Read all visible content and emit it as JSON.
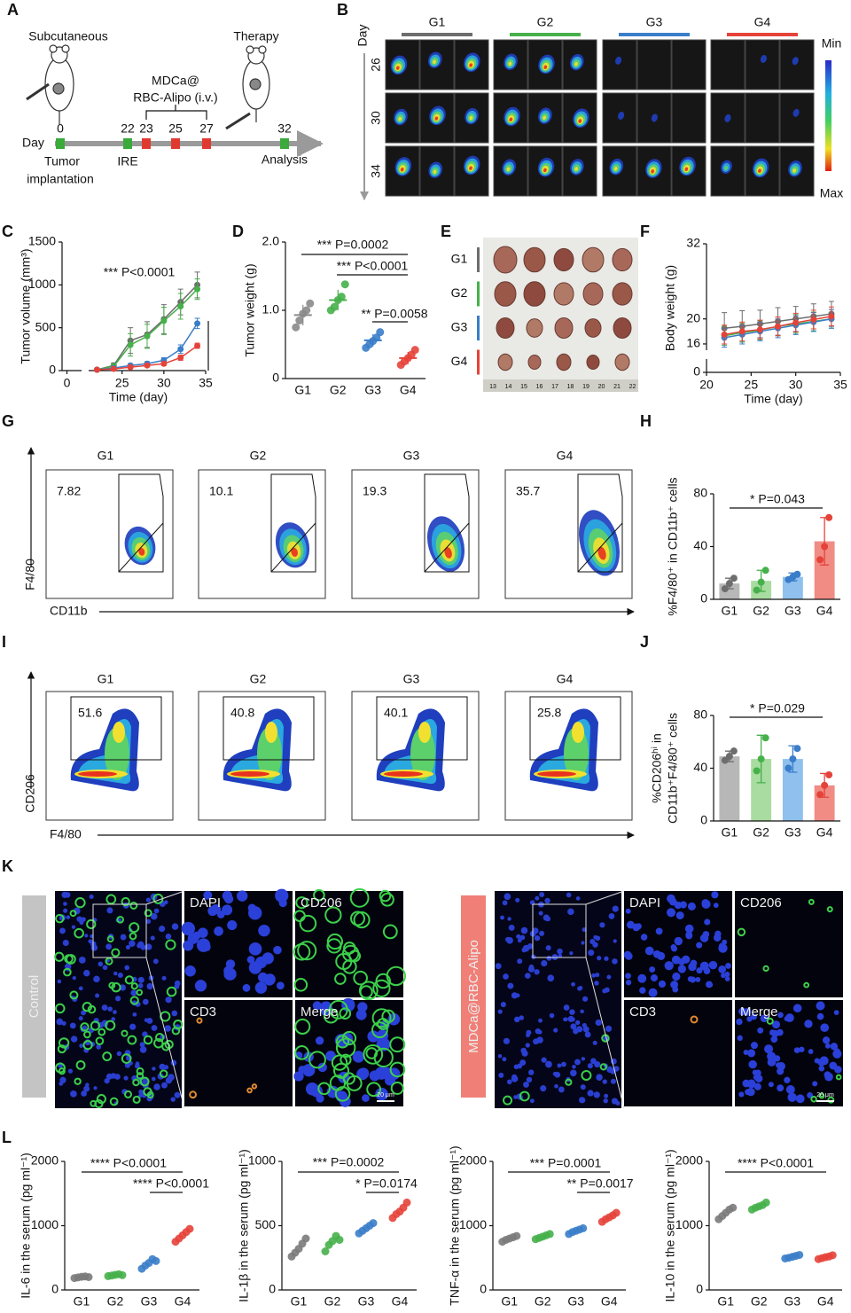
{
  "figure": {
    "panel_labels": [
      "A",
      "B",
      "C",
      "D",
      "E",
      "F",
      "G",
      "H",
      "I",
      "J",
      "K",
      "L"
    ],
    "A": {
      "subcutaneous": "Subcutaneous",
      "therapy": "Therapy",
      "treatment": [
        "MDCa@",
        "RBC-Alipo (i.v.)"
      ],
      "day_label": "Day",
      "days": [
        "0",
        "22",
        "23",
        "25",
        "27",
        "32"
      ],
      "events": [
        "Tumor",
        "implantation",
        "IRE",
        "Analysis"
      ]
    },
    "B": {
      "groups": [
        "G1",
        "G2",
        "G3",
        "G4"
      ],
      "group_colors": [
        "#6d6d6d",
        "#46b04a",
        "#3a7dc9",
        "#e5433a"
      ],
      "day_label": "Day",
      "days": [
        "26",
        "30",
        "34"
      ],
      "scale": [
        "Min",
        "Max"
      ]
    },
    "E": {
      "groups": [
        "G1",
        "G2",
        "G3",
        "G4"
      ],
      "group_colors": [
        "#6d6d6d",
        "#46b04a",
        "#3a7dc9",
        "#e5433a"
      ],
      "ruler": [
        "13",
        "14",
        "15",
        "16",
        "17",
        "18",
        "19",
        "20",
        "21",
        "22"
      ]
    },
    "G": {
      "groups": [
        "G1",
        "G2",
        "G3",
        "G4"
      ],
      "percentages": [
        "7.82",
        "10.1",
        "19.3",
        "35.7"
      ],
      "y_label": "F4/80",
      "x_label": "CD11b"
    },
    "I": {
      "groups": [
        "G1",
        "G2",
        "G3",
        "G4"
      ],
      "percentages": [
        "51.6",
        "40.8",
        "40.1",
        "25.8"
      ],
      "y_label": "CD206",
      "x_label": "F4/80"
    },
    "K": {
      "groups": [
        "Control",
        "MDCa@RBC-Alipo"
      ],
      "channels": [
        "DAPI",
        "CD206",
        "CD3",
        "Merge"
      ],
      "scale_bar": "20 μm"
    }
  },
  "chart_data": [
    {
      "type": "line",
      "y_label": "Tumor volume (mm³)",
      "x_label": "Time (day)",
      "annotations": [
        "*** P<0.0001"
      ],
      "x": [
        22,
        24,
        26,
        28,
        30,
        32,
        34
      ],
      "xlim": [
        21,
        35
      ],
      "xticks": [
        25,
        30,
        35
      ],
      "ylim": [
        0,
        1500
      ],
      "yticks": [
        0,
        500,
        1000,
        1500
      ],
      "break_xlim": [
        -1,
        3
      ],
      "break_xticks": [
        0
      ],
      "series": [
        {
          "color": "#6d6d6d",
          "values": [
            10,
            60,
            350,
            420,
            600,
            800,
            1000
          ],
          "errors": [
            5,
            30,
            150,
            150,
            170,
            150,
            150
          ]
        },
        {
          "color": "#46b04a",
          "values": [
            10,
            50,
            300,
            400,
            580,
            750,
            950
          ],
          "errors": [
            5,
            30,
            130,
            140,
            160,
            150,
            120
          ]
        },
        {
          "color": "#3a7dc9",
          "values": [
            10,
            30,
            60,
            80,
            120,
            250,
            550
          ],
          "errors": [
            5,
            10,
            20,
            25,
            30,
            50,
            60
          ]
        },
        {
          "color": "#e5433a",
          "values": [
            10,
            20,
            40,
            60,
            80,
            150,
            290
          ],
          "errors": [
            5,
            10,
            15,
            15,
            20,
            30,
            30
          ]
        }
      ]
    },
    {
      "type": "dot",
      "y_label": "Tumor weight (g)",
      "annotations": [
        "*** P=0.0002",
        "*** P<0.0001",
        "** P=0.0058"
      ],
      "categories": [
        "G1",
        "G2",
        "G3",
        "G4"
      ],
      "colors": [
        "#8a8a8a",
        "#46b04a",
        "#3a7dc9",
        "#e5433a"
      ],
      "points": [
        [
          0.75,
          0.85,
          0.95,
          1.0,
          1.1
        ],
        [
          1.0,
          1.05,
          1.15,
          1.2,
          1.38
        ],
        [
          0.45,
          0.5,
          0.55,
          0.6,
          0.68
        ],
        [
          0.2,
          0.25,
          0.3,
          0.35,
          0.42
        ]
      ],
      "values": [
        0.93,
        1.15,
        0.56,
        0.3
      ],
      "errors": [
        0.15,
        0.15,
        0.09,
        0.09
      ],
      "ylim": [
        0,
        2
      ],
      "yticks": [
        0,
        {
          "value": 1,
          "label": "1.0"
        },
        {
          "value": 2,
          "label": "2.0"
        }
      ]
    },
    {
      "type": "line",
      "y_label": "Body weight (g)",
      "x_label": "Time (day)",
      "x": [
        22,
        24,
        26,
        28,
        30,
        32,
        34
      ],
      "xlim": [
        20,
        35
      ],
      "xticks": [
        20,
        25,
        30,
        35
      ],
      "ylim": [
        15,
        32
      ],
      "yticks": [
        16,
        20,
        32
      ],
      "break_ylim": [
        0,
        1
      ],
      "break_yticks": [
        0
      ],
      "series": [
        {
          "color": "#6d6d6d",
          "values": [
            18.5,
            18.8,
            19.2,
            19.6,
            20,
            20.4,
            20.8
          ],
          "errors": [
            2.5,
            2.5,
            2.2,
            2.2,
            2,
            2,
            2
          ]
        },
        {
          "color": "#46b04a",
          "values": [
            17.3,
            17.8,
            18.2,
            18.8,
            19.2,
            19.6,
            20
          ],
          "errors": [
            1.5,
            1.5,
            1.5,
            1.5,
            1.5,
            1.5,
            1.5
          ]
        },
        {
          "color": "#3a7dc9",
          "values": [
            17,
            17.5,
            18,
            18.5,
            19,
            19.5,
            20
          ],
          "errors": [
            1.5,
            1.5,
            1.5,
            1.5,
            1.5,
            1.5,
            1.5
          ]
        },
        {
          "color": "#e5433a",
          "values": [
            17.5,
            18,
            18.3,
            18.8,
            19.4,
            19.9,
            20.4
          ],
          "errors": [
            1.5,
            1.5,
            1.5,
            1.5,
            1.5,
            1.5,
            1.5
          ]
        }
      ]
    },
    {
      "type": "bar",
      "y_label": "%F4/80⁺ in CD11b⁺ cells",
      "annotations": [
        "* P=0.043"
      ],
      "categories": [
        "G1",
        "G2",
        "G3",
        "G4"
      ],
      "colors": [
        "#b7b7b7",
        "#a8dca0",
        "#8fc0ee",
        "#f08c84"
      ],
      "point_colors": [
        "#6d6d6d",
        "#46b04a",
        "#3a7dc9",
        "#e5433a"
      ],
      "values": [
        12,
        14,
        17,
        44
      ],
      "errors": [
        4,
        8,
        3,
        18
      ],
      "points": [
        [
          8,
          12,
          16
        ],
        [
          7,
          13,
          22
        ],
        [
          15,
          17,
          19
        ],
        [
          30,
          40,
          62
        ]
      ],
      "ylim": [
        0,
        80
      ],
      "yticks": [
        0,
        40,
        80
      ]
    },
    {
      "type": "bar",
      "y_label": [
        "%CD206ʰⁱ in",
        "CD11b⁺F4/80⁺ cells"
      ],
      "annotations": [
        "* P=0.029"
      ],
      "categories": [
        "G1",
        "G2",
        "G3",
        "G4"
      ],
      "colors": [
        "#b7b7b7",
        "#a8dca0",
        "#8fc0ee",
        "#f08c84"
      ],
      "point_colors": [
        "#6d6d6d",
        "#46b04a",
        "#3a7dc9",
        "#e5433a"
      ],
      "values": [
        49,
        47,
        47,
        27
      ],
      "errors": [
        4,
        18,
        10,
        9
      ],
      "points": [
        [
          46,
          49,
          53
        ],
        [
          38,
          47,
          63
        ],
        [
          40,
          47,
          55
        ],
        [
          20,
          27,
          35
        ]
      ],
      "ylim": [
        0,
        80
      ],
      "yticks": [
        0,
        40,
        80
      ]
    },
    {
      "type": "dot",
      "y_label": "IL-6 in the serum (pg ml⁻¹)",
      "annotations": [
        "**** P<0.0001",
        "**** P<0.0001"
      ],
      "categories": [
        "G1",
        "G2",
        "G3",
        "G4"
      ],
      "colors": [
        "#7a7a7a",
        "#46b04a",
        "#3a7dc9",
        "#e5433a"
      ],
      "points": [
        [
          185,
          195,
          205,
          210,
          200
        ],
        [
          215,
          225,
          235,
          245,
          230
        ],
        [
          330,
          380,
          420,
          480,
          450
        ],
        [
          750,
          800,
          850,
          900,
          950
        ]
      ],
      "ylim": [
        0,
        2000
      ],
      "yticks": [
        0,
        1000,
        2000
      ]
    },
    {
      "type": "dot",
      "y_label": "IL-1β in the serum (pg ml⁻¹)",
      "annotations": [
        "*** P=0.0002",
        "* P=0.0174"
      ],
      "categories": [
        "G1",
        "G2",
        "G3",
        "G4"
      ],
      "colors": [
        "#7a7a7a",
        "#46b04a",
        "#3a7dc9",
        "#e5433a"
      ],
      "points": [
        [
          260,
          290,
          320,
          360,
          400
        ],
        [
          300,
          350,
          380,
          420,
          390
        ],
        [
          440,
          460,
          480,
          500,
          520
        ],
        [
          560,
          590,
          610,
          640,
          680
        ]
      ],
      "ylim": [
        0,
        1000
      ],
      "yticks": [
        0,
        500,
        1000
      ]
    },
    {
      "type": "dot",
      "y_label": "TNF-α in the serum (pg ml⁻¹)",
      "annotations": [
        "*** P=0.0001",
        "** P=0.0017"
      ],
      "categories": [
        "G1",
        "G2",
        "G3",
        "G4"
      ],
      "colors": [
        "#7a7a7a",
        "#46b04a",
        "#3a7dc9",
        "#e5433a"
      ],
      "points": [
        [
          750,
          780,
          800,
          820,
          840
        ],
        [
          790,
          810,
          830,
          850,
          870
        ],
        [
          870,
          900,
          920,
          940,
          960
        ],
        [
          1060,
          1100,
          1130,
          1160,
          1200
        ]
      ],
      "ylim": [
        0,
        2000
      ],
      "yticks": [
        0,
        1000,
        2000
      ]
    },
    {
      "type": "dot",
      "y_label": "IL-10 in the serum (pg ml⁻¹)",
      "annotations": [
        "**** P<0.0001"
      ],
      "categories": [
        "G1",
        "G2",
        "G3",
        "G4"
      ],
      "colors": [
        "#7a7a7a",
        "#46b04a",
        "#3a7dc9",
        "#e5433a"
      ],
      "points": [
        [
          1100,
          1150,
          1200,
          1250,
          1280
        ],
        [
          1250,
          1280,
          1300,
          1320,
          1360
        ],
        [
          490,
          500,
          515,
          530,
          545
        ],
        [
          480,
          495,
          510,
          520,
          540
        ]
      ],
      "ylim": [
        0,
        2000
      ],
      "yticks": [
        0,
        1000,
        2000
      ]
    }
  ]
}
